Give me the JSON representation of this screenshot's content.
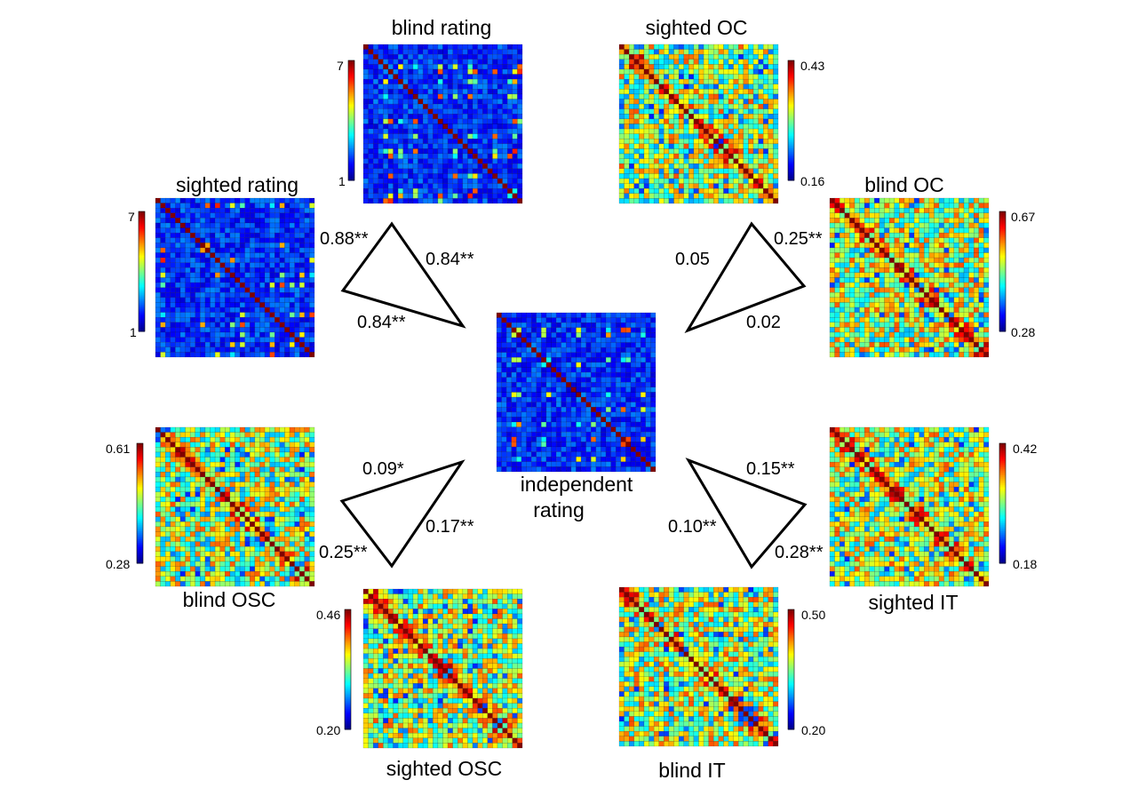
{
  "colormap": [
    "#00008f",
    "#0000ff",
    "#0080ff",
    "#00ffff",
    "#80ff80",
    "#ffff00",
    "#ff8000",
    "#ff0000",
    "#800000"
  ],
  "matrices": [
    {
      "id": "blind-rating",
      "title": "blind rating",
      "cmin": "1",
      "cmax": "7",
      "style": "sparse",
      "seed": 11
    },
    {
      "id": "sighted-oc",
      "title": "sighted OC",
      "cmin": "0.16",
      "cmax": "0.43",
      "style": "dense",
      "seed": 23
    },
    {
      "id": "sighted-rating",
      "title": "sighted rating",
      "cmin": "1",
      "cmax": "7",
      "style": "sparse",
      "seed": 37
    },
    {
      "id": "blind-oc",
      "title": "blind OC",
      "cmin": "0.28",
      "cmax": "0.67",
      "style": "dense",
      "seed": 41
    },
    {
      "id": "independent-rating",
      "title": "independent",
      "title2": "rating",
      "style": "sparse",
      "seed": 53
    },
    {
      "id": "blind-osc",
      "title": "blind OSC",
      "cmin": "0.28",
      "cmax": "0.61",
      "style": "dense",
      "seed": 67
    },
    {
      "id": "sighted-it",
      "title": "sighted IT",
      "cmin": "0.18",
      "cmax": "0.42",
      "style": "dense",
      "seed": 71
    },
    {
      "id": "sighted-osc",
      "title": "sighted OSC",
      "cmin": "0.20",
      "cmax": "0.46",
      "style": "dense",
      "seed": 83
    },
    {
      "id": "blind-it",
      "title": "blind IT",
      "cmin": "0.20",
      "cmax": "0.50",
      "style": "dense",
      "seed": 97
    }
  ],
  "correlations": {
    "rating_triangle": [
      "0.88**",
      "0.84**",
      "0.84**"
    ],
    "oc_triangle": [
      "0.05",
      "0.25**",
      "0.02"
    ],
    "osc_triangle": [
      "0.09*",
      "0.17**",
      "0.25**"
    ],
    "it_triangle": [
      "0.15**",
      "0.10**",
      "0.28**"
    ]
  }
}
